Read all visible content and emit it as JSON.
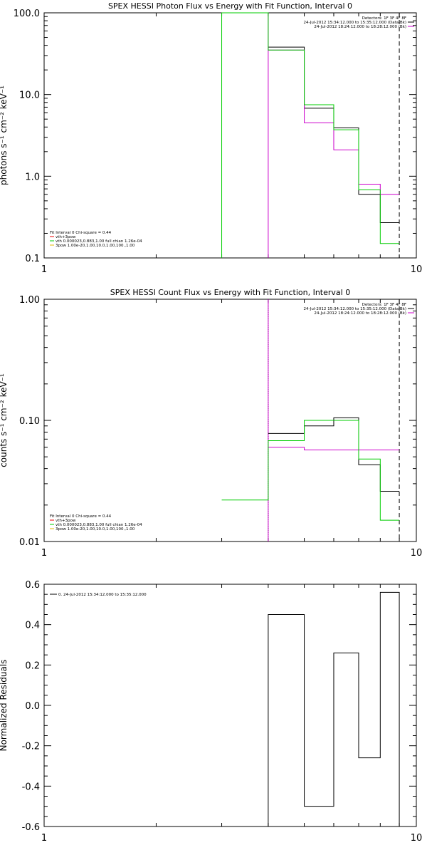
{
  "chart_data": [
    {
      "type": "line",
      "title": "SPEX HESSI Photon Flux vs Energy with Fit Function, Interval 0",
      "ylabel": "photons s⁻¹ cm⁻² keV⁻¹",
      "xlim": [
        1,
        10
      ],
      "ylim": [
        0.1,
        100
      ],
      "xscale": "log",
      "yscale": "log",
      "xticks": [
        "1",
        "10"
      ],
      "yticks": [
        {
          "v": 0.1,
          "t": "0.1"
        },
        {
          "v": 1,
          "t": "1.0"
        },
        {
          "v": 10,
          "t": "10.0"
        },
        {
          "v": 100,
          "t": "100.0"
        }
      ],
      "header_lines": [
        "Detectors: 1F 3F 4F 8F",
        "24-Jul-2012 15:34:12.000 to 15:35:12.000 (Data-Bk)",
        "24-Jul-2012 18:24:12.000 to 18:28:12.000 (Bk)"
      ],
      "legend_lines": [
        "Fit Interval 0   Chi-square = 0.44",
        "vth+3pow",
        "vth 0.000023,0.883,1.00   full chian 1.26e-04",
        "3pow 1.00e-20,1.00,10.0,1.00,100.,1.00"
      ],
      "vlines": [
        {
          "x": 3.0,
          "color": "#00cc00",
          "style": "solid"
        },
        {
          "x": 4.0,
          "color": "#cc00cc",
          "style": "solid"
        },
        {
          "x": 9.0,
          "color": "#000000",
          "style": "dashed"
        }
      ],
      "series": [
        {
          "name": "Data-Bk",
          "color": "#000000",
          "edges": [
            4,
            5,
            6,
            7,
            8,
            9
          ],
          "values": [
            38,
            6.8,
            3.9,
            0.6,
            0.27
          ]
        },
        {
          "name": "Bk",
          "color": "#cc00cc",
          "edges": [
            4,
            5,
            6,
            7,
            8,
            9
          ],
          "values": [
            35,
            4.5,
            2.1,
            0.8,
            0.6
          ]
        },
        {
          "name": "vth",
          "color": "#00cc00",
          "edges": [
            3,
            4,
            5,
            6,
            7,
            8,
            9
          ],
          "values": [
            100,
            35,
            7.5,
            3.7,
            0.68,
            0.15
          ]
        }
      ]
    },
    {
      "type": "line",
      "title": "SPEX HESSI Count Flux vs Energy with Fit Function, Interval 0",
      "ylabel": "counts s⁻¹ cm⁻² keV⁻¹",
      "xlim": [
        1,
        10
      ],
      "ylim": [
        0.01,
        1
      ],
      "xscale": "log",
      "yscale": "log",
      "xticks": [
        "1",
        "10"
      ],
      "yticks": [
        {
          "v": 0.01,
          "t": "0.01"
        },
        {
          "v": 0.1,
          "t": "0.10"
        },
        {
          "v": 1,
          "t": "1.00"
        }
      ],
      "header_lines": [
        "Detectors: 1F 3F 4F 8F",
        "24-Jul-2012 15:34:12.000 to 15:35:12.000 (Data-Bk)",
        "24-Jul-2012 18:24:12.000 to 18:28:12.000 (Bk)"
      ],
      "legend_lines": [
        "Fit Interval 0   Chi-square = 0.44",
        "vth+3pow",
        "vth 0.000023,0.883,1.00   full chian 1.26e-04",
        "3pow 1.00e-20,1.00,10.0,1.00,100.,1.00"
      ],
      "vlines": [
        {
          "x": 4.0,
          "color": "#000000",
          "style": "dotted"
        },
        {
          "x": 4.0,
          "color": "#cc00cc",
          "style": "solid"
        },
        {
          "x": 9.0,
          "color": "#000000",
          "style": "dashed"
        }
      ],
      "series": [
        {
          "name": "Data-Bk",
          "color": "#000000",
          "edges": [
            4,
            5,
            6,
            7,
            8,
            9
          ],
          "values": [
            0.078,
            0.09,
            0.105,
            0.043,
            0.026
          ]
        },
        {
          "name": "Bk",
          "color": "#cc00cc",
          "edges": [
            4,
            5,
            6,
            7,
            8,
            9
          ],
          "values": [
            0.06,
            0.057,
            0.057,
            0.057,
            0.057
          ]
        },
        {
          "name": "vth",
          "color": "#00cc00",
          "edges": [
            3,
            4,
            5,
            6,
            7,
            8,
            9
          ],
          "values": [
            0.022,
            0.068,
            0.1,
            0.1,
            0.048,
            0.015
          ]
        }
      ]
    },
    {
      "type": "line",
      "title": "",
      "ylabel": "Normalized Residuals",
      "xlim": [
        1,
        10
      ],
      "ylim": [
        -0.6,
        0.6
      ],
      "xscale": "log",
      "yscale": "linear",
      "xticks": [
        "1",
        "10"
      ],
      "yticks": [
        {
          "v": -0.6,
          "t": "-0.6"
        },
        {
          "v": -0.4,
          "t": "-0.4"
        },
        {
          "v": -0.2,
          "t": "-0.2"
        },
        {
          "v": 0.0,
          "t": "0.0"
        },
        {
          "v": 0.2,
          "t": "0.2"
        },
        {
          "v": 0.4,
          "t": "0.4"
        },
        {
          "v": 0.6,
          "t": "0.6"
        }
      ],
      "header_lines": [],
      "legend_lines": [
        "0. 24-Jul-2012 15:34:12.000 to 15:35:12.000"
      ],
      "vlines": [],
      "series": [
        {
          "name": "0. 24-Jul-2012 15:34:12.000 to 15:35:12.000",
          "color": "#000000",
          "edges": [
            4,
            5,
            6,
            7,
            8,
            9
          ],
          "values": [
            0.45,
            -0.5,
            0.26,
            -0.26,
            0.56
          ],
          "drop_to_axis": true
        }
      ]
    }
  ]
}
